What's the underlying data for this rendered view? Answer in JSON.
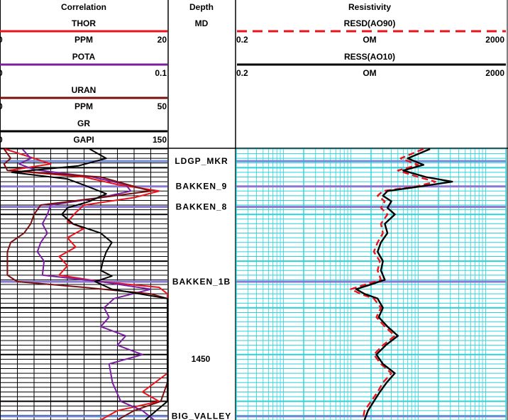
{
  "tracks": {
    "correlation": {
      "title": "Correlation",
      "curves": [
        {
          "name": "THOR",
          "unit": "PPM",
          "min": "0",
          "max": "20",
          "color": "#e8141b",
          "dash": false
        },
        {
          "name": "POTA",
          "unit": "",
          "min": "0",
          "max": "0.1",
          "color": "#7b1fa2",
          "dash": false
        },
        {
          "name": "URAN",
          "unit": "PPM",
          "min": "0",
          "max": "50",
          "color": "#7a0f0f",
          "dash": false
        },
        {
          "name": "GR",
          "unit": "GAPI",
          "min": "0",
          "max": "150",
          "color": "#000000",
          "dash": false
        }
      ]
    },
    "depth": {
      "title": "Depth",
      "unit": "MD"
    },
    "resistivity": {
      "title": "Resistivity",
      "curves": [
        {
          "name": "RESD(AO90)",
          "unit": "OM",
          "min": "0.2",
          "max": "2000",
          "color": "#e8141b",
          "dash": true
        },
        {
          "name": "RESS(AO10)",
          "unit": "OM",
          "min": "0.2",
          "max": "2000",
          "color": "#000000",
          "dash": false
        }
      ]
    }
  },
  "chart_data": {
    "type": "line",
    "depth_axis_label": "1450",
    "depth_range_md": [
      1433,
      1462
    ],
    "depth_axis_label_value": 1450,
    "formation_tops": [
      {
        "name": "LDGP_MKR",
        "depth": 1434.3,
        "color": "#6f8bd6"
      },
      {
        "name": "BAKKEN_9",
        "depth": 1437.0,
        "color": "#8a78d0"
      },
      {
        "name": "BAKKEN_8",
        "depth": 1439.2,
        "color": "#8a78d0"
      },
      {
        "name": "BAKKEN_1B",
        "depth": 1447.2,
        "color": "#8a78d0"
      },
      {
        "name": "BIG_VALLEY",
        "depth": 1461.6,
        "color": "#6f8bd6"
      }
    ],
    "series": [
      {
        "name": "THOR",
        "unit": "PPM",
        "range": [
          0,
          20
        ],
        "color": "#e8141b",
        "points": [
          [
            1433,
            0.5
          ],
          [
            1434,
            4
          ],
          [
            1434.6,
            6
          ],
          [
            1435.3,
            1
          ],
          [
            1436,
            10
          ],
          [
            1436.8,
            14
          ],
          [
            1437.5,
            19
          ],
          [
            1438.2,
            16
          ],
          [
            1439,
            10
          ],
          [
            1439.8,
            9
          ],
          [
            1440.8,
            8
          ],
          [
            1441.5,
            10
          ],
          [
            1442.5,
            8
          ],
          [
            1443.5,
            9
          ],
          [
            1444.5,
            7
          ],
          [
            1445.5,
            8
          ],
          [
            1446.5,
            7
          ],
          [
            1447.2,
            12
          ],
          [
            1447.8,
            19
          ],
          [
            1448.5,
            20
          ],
          [
            1450,
            20
          ],
          [
            1452,
            20
          ],
          [
            1455,
            20
          ],
          [
            1457,
            20
          ],
          [
            1459,
            17
          ],
          [
            1460,
            19
          ],
          [
            1461,
            14
          ],
          [
            1462,
            12
          ]
        ]
      },
      {
        "name": "POTA",
        "unit": "",
        "range": [
          0,
          0.1
        ],
        "color": "#7b1fa2",
        "points": [
          [
            1433,
            0.013
          ],
          [
            1434,
            0.018
          ],
          [
            1434.6,
            0.011
          ],
          [
            1435.2,
            0.02
          ],
          [
            1436,
            0.055
          ],
          [
            1436.8,
            0.075
          ],
          [
            1437.5,
            0.078
          ],
          [
            1438.2,
            0.06
          ],
          [
            1439,
            0.03
          ],
          [
            1440,
            0.028
          ],
          [
            1441,
            0.025
          ],
          [
            1442,
            0.028
          ],
          [
            1443,
            0.024
          ],
          [
            1444,
            0.022
          ],
          [
            1445,
            0.026
          ],
          [
            1446.5,
            0.025
          ],
          [
            1447.2,
            0.06
          ],
          [
            1448,
            0.09
          ],
          [
            1449,
            0.068
          ],
          [
            1450,
            0.062
          ],
          [
            1451,
            0.065
          ],
          [
            1452,
            0.06
          ],
          [
            1453,
            0.075
          ],
          [
            1454,
            0.07
          ],
          [
            1455,
            0.085
          ],
          [
            1456,
            0.065
          ],
          [
            1458,
            0.067
          ],
          [
            1460,
            0.072
          ],
          [
            1461,
            0.085
          ],
          [
            1462,
            0.092
          ]
        ]
      },
      {
        "name": "URAN",
        "unit": "PPM",
        "range": [
          0,
          50
        ],
        "color": "#7a0f0f",
        "points": [
          [
            1433,
            1
          ],
          [
            1434,
            3
          ],
          [
            1434.6,
            1
          ],
          [
            1435.3,
            2
          ],
          [
            1436,
            30
          ],
          [
            1436.8,
            38
          ],
          [
            1437.5,
            45
          ],
          [
            1438.2,
            30
          ],
          [
            1439,
            12
          ],
          [
            1440,
            10
          ],
          [
            1441,
            9
          ],
          [
            1442,
            7
          ],
          [
            1443,
            3
          ],
          [
            1444,
            2
          ],
          [
            1445,
            2
          ],
          [
            1446.5,
            2
          ],
          [
            1447.2,
            5
          ],
          [
            1447.8,
            25
          ],
          [
            1448.5,
            45
          ],
          [
            1449,
            50
          ],
          [
            1452,
            50
          ],
          [
            1455,
            50
          ],
          [
            1458,
            50
          ],
          [
            1460,
            48
          ],
          [
            1461,
            40
          ],
          [
            1462,
            35
          ]
        ]
      },
      {
        "name": "GR",
        "unit": "GAPI",
        "range": [
          0,
          150
        ],
        "color": "#000000",
        "points": [
          [
            1433,
            80
          ],
          [
            1434,
            95
          ],
          [
            1434.8,
            70
          ],
          [
            1435.5,
            10
          ],
          [
            1436.2,
            60
          ],
          [
            1437,
            78
          ],
          [
            1437.8,
            95
          ],
          [
            1438.6,
            80
          ],
          [
            1439.3,
            60
          ],
          [
            1440,
            55
          ],
          [
            1441,
            65
          ],
          [
            1442,
            90
          ],
          [
            1443,
            100
          ],
          [
            1444,
            95
          ],
          [
            1445,
            92
          ],
          [
            1446,
            90
          ],
          [
            1446.6,
            100
          ],
          [
            1447.2,
            85
          ],
          [
            1448,
            100
          ],
          [
            1449,
            150
          ],
          [
            1452,
            150
          ],
          [
            1455,
            150
          ],
          [
            1458,
            150
          ],
          [
            1460,
            150
          ],
          [
            1461,
            140
          ],
          [
            1462,
            130
          ]
        ]
      },
      {
        "name": "RESD(AO90)",
        "unit": "OM",
        "range": [
          0.2,
          2000
        ],
        "scale": "log",
        "color": "#e8141b",
        "points": [
          [
            1433,
            120
          ],
          [
            1434,
            55
          ],
          [
            1434.7,
            100
          ],
          [
            1435.3,
            50
          ],
          [
            1436,
            100
          ],
          [
            1436.5,
            180
          ],
          [
            1437,
            95
          ],
          [
            1437.5,
            30
          ],
          [
            1438,
            25
          ],
          [
            1438.6,
            32
          ],
          [
            1439.3,
            28
          ],
          [
            1440,
            35
          ],
          [
            1441,
            28
          ],
          [
            1442,
            30
          ],
          [
            1443,
            25
          ],
          [
            1444,
            22
          ],
          [
            1445,
            27
          ],
          [
            1446,
            25
          ],
          [
            1447,
            28
          ],
          [
            1447.6,
            15
          ],
          [
            1448,
            10
          ],
          [
            1448.5,
            14
          ],
          [
            1449,
            22
          ],
          [
            1450,
            28
          ],
          [
            1451,
            24
          ],
          [
            1452,
            32
          ],
          [
            1453,
            45
          ],
          [
            1454,
            30
          ],
          [
            1455,
            22
          ],
          [
            1456,
            28
          ],
          [
            1457,
            40
          ],
          [
            1458,
            30
          ],
          [
            1459,
            25
          ],
          [
            1460,
            20
          ],
          [
            1461,
            16
          ],
          [
            1462,
            15
          ]
        ]
      },
      {
        "name": "RESS(AO10)",
        "unit": "OM",
        "range": [
          0.2,
          2000
        ],
        "scale": "log",
        "color": "#000000",
        "points": [
          [
            1433,
            150
          ],
          [
            1434,
            70
          ],
          [
            1434.7,
            120
          ],
          [
            1435.3,
            60
          ],
          [
            1436,
            130
          ],
          [
            1436.5,
            320
          ],
          [
            1437,
            110
          ],
          [
            1437.5,
            35
          ],
          [
            1438,
            30
          ],
          [
            1438.6,
            40
          ],
          [
            1439.3,
            35
          ],
          [
            1440,
            45
          ],
          [
            1441,
            32
          ],
          [
            1442,
            35
          ],
          [
            1443,
            28
          ],
          [
            1444,
            25
          ],
          [
            1445,
            30
          ],
          [
            1446,
            28
          ],
          [
            1447,
            32
          ],
          [
            1447.6,
            18
          ],
          [
            1448,
            12
          ],
          [
            1448.5,
            16
          ],
          [
            1449,
            25
          ],
          [
            1450,
            30
          ],
          [
            1451,
            26
          ],
          [
            1452,
            35
          ],
          [
            1453,
            50
          ],
          [
            1454,
            33
          ],
          [
            1455,
            24
          ],
          [
            1456,
            30
          ],
          [
            1457,
            45
          ],
          [
            1458,
            34
          ],
          [
            1459,
            27
          ],
          [
            1460,
            22
          ],
          [
            1461,
            18
          ],
          [
            1462,
            16
          ]
        ]
      }
    ]
  }
}
